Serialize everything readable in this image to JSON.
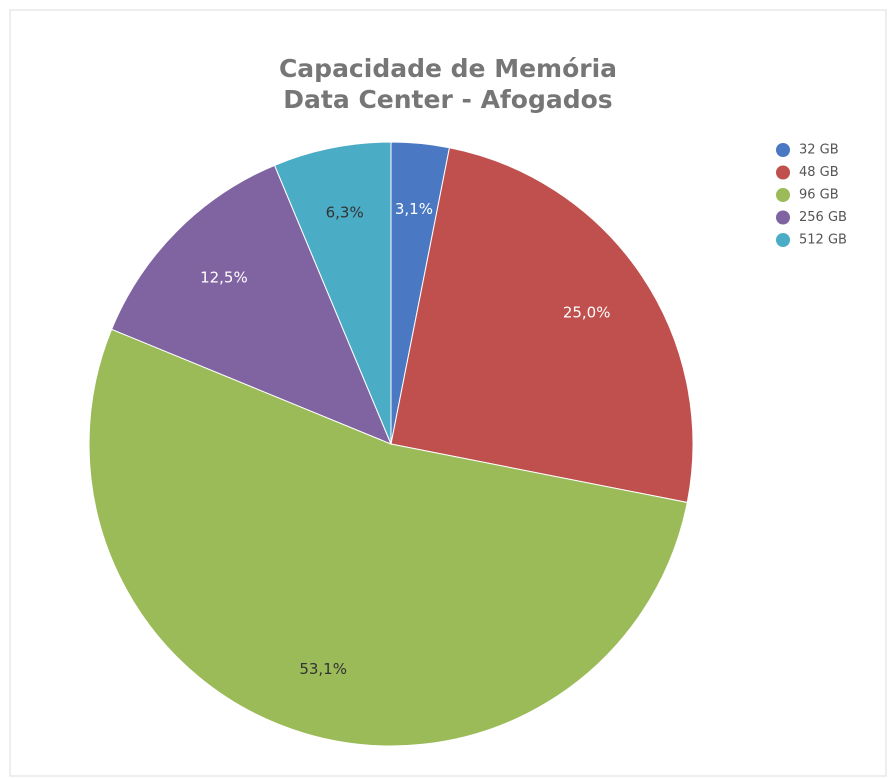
{
  "chart_data": {
    "type": "pie",
    "title": "Capacidade de Memória",
    "subtitle": "Data Center - Afogados",
    "categories": [
      "32 GB",
      "48 GB",
      "96 GB",
      "256 GB",
      "512 GB"
    ],
    "values": [
      3.1,
      25.0,
      53.1,
      12.5,
      6.3
    ],
    "value_labels": [
      "3,1%",
      "25,0%",
      "53,1%",
      "12,5%",
      "6,3%"
    ],
    "colors": [
      "#4a78c2",
      "#c0504d",
      "#9bbb59",
      "#8064a2",
      "#4bacc6"
    ],
    "legend": "right"
  }
}
